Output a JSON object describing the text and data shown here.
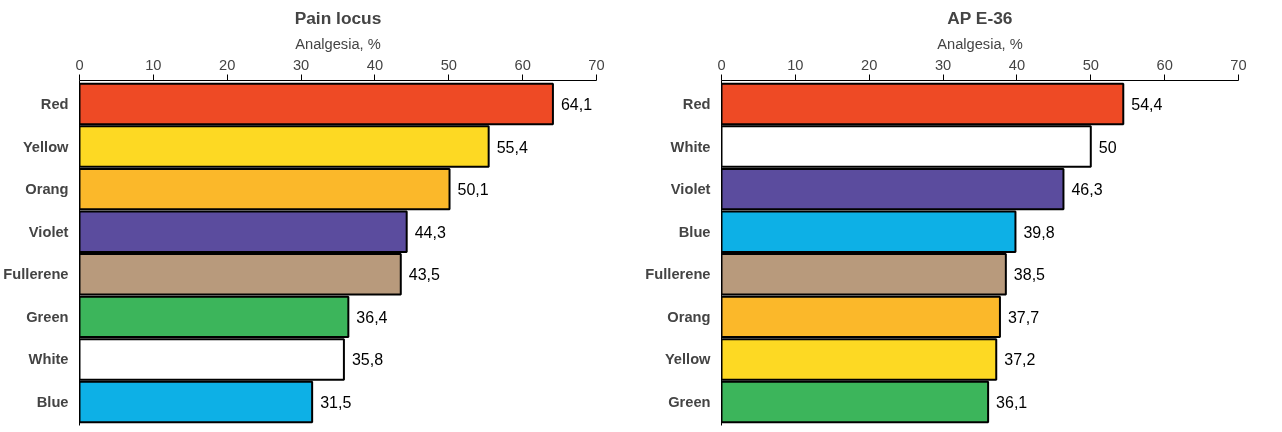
{
  "chart_data": [
    {
      "type": "bar",
      "orientation": "horizontal",
      "title": "Pain locus",
      "xlabel": "Analgesia, %",
      "categories": [
        "Red",
        "Yellow",
        "Orang",
        "Violet",
        "Fullerene",
        "Green",
        "White",
        "Blue"
      ],
      "values": [
        64.1,
        55.4,
        50.1,
        44.3,
        43.5,
        36.4,
        35.8,
        31.5
      ],
      "value_labels": [
        "64,1",
        "55,4",
        "50,1",
        "44,3",
        "43,5",
        "36,4",
        "35,8",
        "31,5"
      ],
      "colors": [
        "#ee4a25",
        "#fdd923",
        "#fbb82a",
        "#5b4c9e",
        "#b89a7c",
        "#3cb55b",
        "#ffffff",
        "#0db0e6"
      ],
      "xlim": [
        0,
        70
      ],
      "xticks": [
        0,
        10,
        20,
        30,
        40,
        50,
        60,
        70
      ],
      "grid": false
    },
    {
      "type": "bar",
      "orientation": "horizontal",
      "title": "AP E-36",
      "xlabel": "Analgesia, %",
      "categories": [
        "Red",
        "White",
        "Violet",
        "Blue",
        "Fullerene",
        "Orang",
        "Yellow",
        "Green"
      ],
      "values": [
        54.4,
        50,
        46.3,
        39.8,
        38.5,
        37.7,
        37.2,
        36.1
      ],
      "value_labels": [
        "54,4",
        "50",
        "46,3",
        "39,8",
        "38,5",
        "37,7",
        "37,2",
        "36,1"
      ],
      "colors": [
        "#ee4a25",
        "#ffffff",
        "#5b4c9e",
        "#0db0e6",
        "#b89a7c",
        "#fbb82a",
        "#fdd923",
        "#3cb55b"
      ],
      "xlim": [
        0,
        70
      ],
      "xticks": [
        0,
        10,
        20,
        30,
        40,
        50,
        60,
        70
      ],
      "grid": false
    }
  ]
}
